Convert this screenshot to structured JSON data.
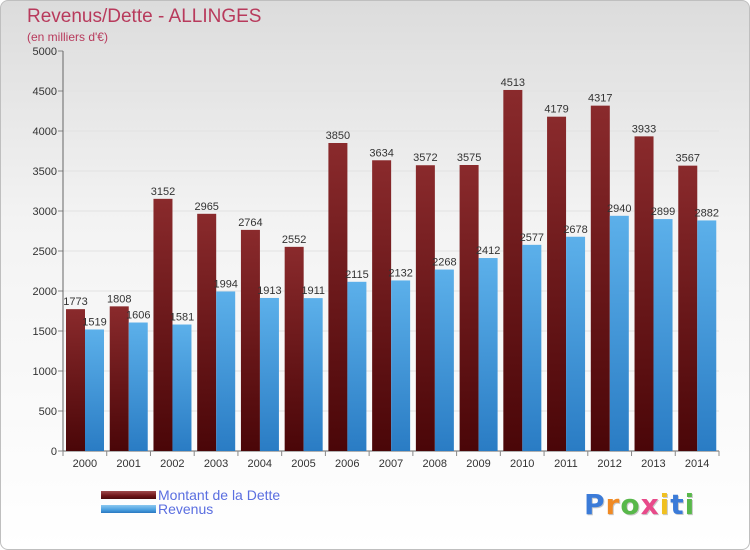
{
  "header": {
    "title": "Revenus/Dette - ALLINGES",
    "subtitle": "(en milliers d'€)"
  },
  "legend": [
    {
      "label": "Montant de la Dette",
      "color": "#6e1518"
    },
    {
      "label": "Revenus",
      "color": "#4aa0e0"
    }
  ],
  "logo": {
    "letters": [
      "P",
      "r",
      "o",
      "x",
      "i",
      "t",
      "i"
    ],
    "colors": [
      "#3b7bd8",
      "#f08a24",
      "#58b84a",
      "#e84a8a",
      "#f0c020",
      "#3b7bd8",
      "#58b84a"
    ]
  },
  "chart_data": {
    "type": "bar",
    "title": "Revenus/Dette - ALLINGES",
    "subtitle": "(en milliers d'€)",
    "categories": [
      "2000",
      "2001",
      "2002",
      "2003",
      "2004",
      "2005",
      "2006",
      "2007",
      "2008",
      "2009",
      "2010",
      "2011",
      "2012",
      "2013",
      "2014"
    ],
    "series": [
      {
        "name": "Montant de la Dette",
        "color": "#6e1518",
        "values": [
          1773,
          1808,
          3152,
          2965,
          2764,
          2552,
          3850,
          3634,
          3572,
          3575,
          4513,
          4179,
          4317,
          3933,
          3567
        ]
      },
      {
        "name": "Revenus",
        "color": "#4aa0e0",
        "values": [
          1519,
          1606,
          1581,
          1994,
          1913,
          1911,
          2115,
          2132,
          2268,
          2412,
          2577,
          2678,
          2940,
          2899,
          2882
        ]
      }
    ],
    "ylim": [
      0,
      5000
    ],
    "yticks": [
      0,
      500,
      1000,
      1500,
      2000,
      2500,
      3000,
      3500,
      4000,
      4500,
      5000
    ],
    "grid": true,
    "legend_position": "bottom-left"
  }
}
